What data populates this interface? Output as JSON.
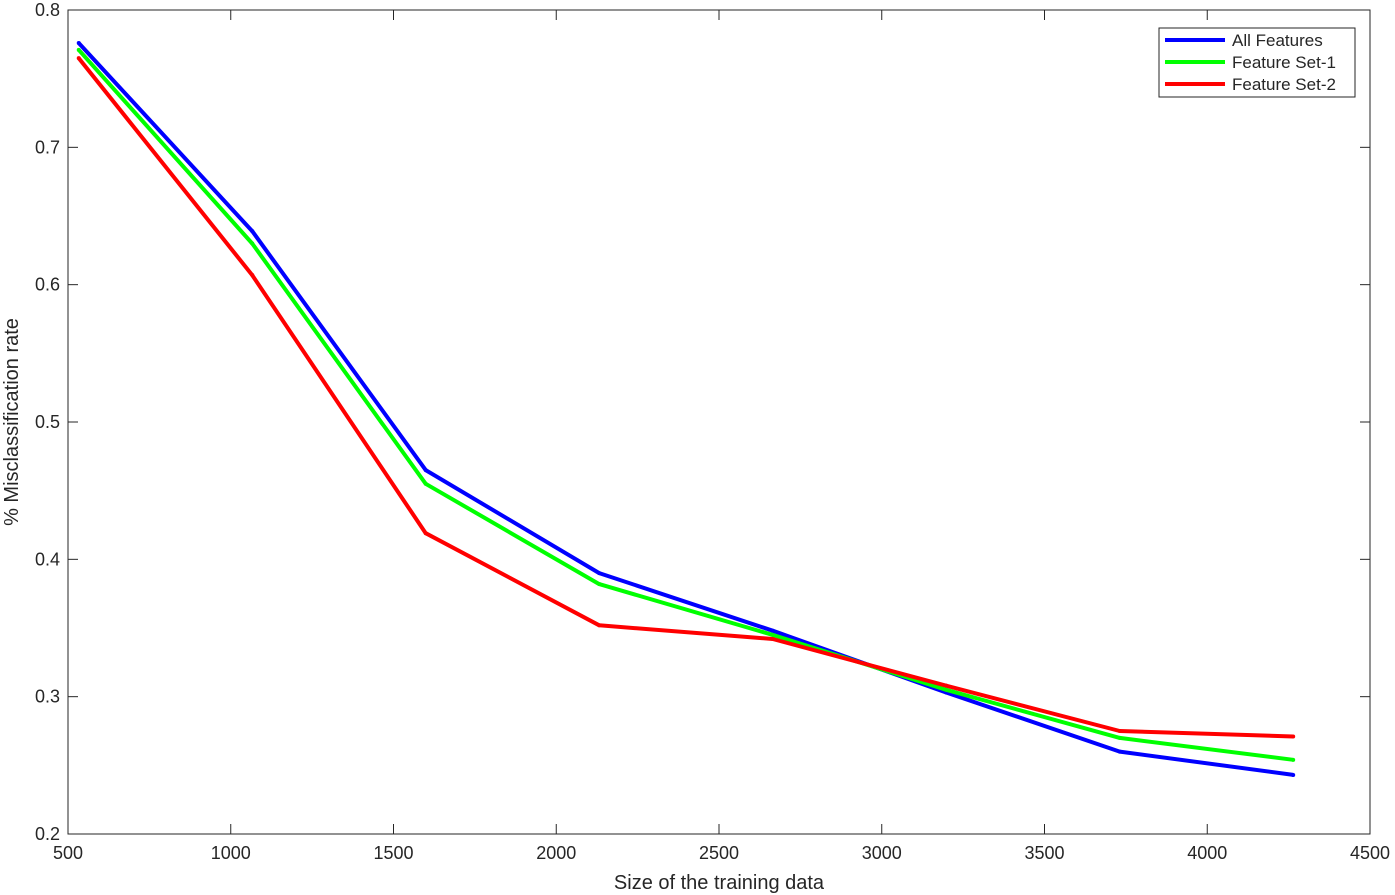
{
  "chart_data": {
    "type": "line",
    "title": "",
    "xlabel": "Size of the training data",
    "ylabel": "% Misclassification rate",
    "xlim": [
      500,
      4500
    ],
    "ylim": [
      0.2,
      0.8
    ],
    "xticks": [
      500,
      1000,
      1500,
      2000,
      2500,
      3000,
      3500,
      4000,
      4500
    ],
    "yticks": [
      0.2,
      0.3,
      0.4,
      0.5,
      0.6,
      0.7,
      0.8
    ],
    "grid": false,
    "legend_position": "top-right",
    "series": [
      {
        "name": "All Features",
        "color": "#0000ff",
        "x": [
          533,
          1066,
          1599,
          2132,
          2665,
          3198,
          3731,
          4264
        ],
        "y": [
          0.776,
          0.639,
          0.465,
          0.39,
          0.348,
          0.303,
          0.26,
          0.243
        ]
      },
      {
        "name": "Feature Set-1",
        "color": "#00ff00",
        "x": [
          533,
          1066,
          1599,
          2132,
          2665,
          3198,
          3731,
          4264
        ],
        "y": [
          0.771,
          0.63,
          0.455,
          0.382,
          0.345,
          0.305,
          0.27,
          0.254
        ]
      },
      {
        "name": "Feature Set-2",
        "color": "#ff0000",
        "x": [
          533,
          1066,
          1599,
          2132,
          2665,
          3198,
          3731,
          4264
        ],
        "y": [
          0.765,
          0.607,
          0.419,
          0.352,
          0.342,
          0.308,
          0.275,
          0.271
        ]
      }
    ]
  }
}
